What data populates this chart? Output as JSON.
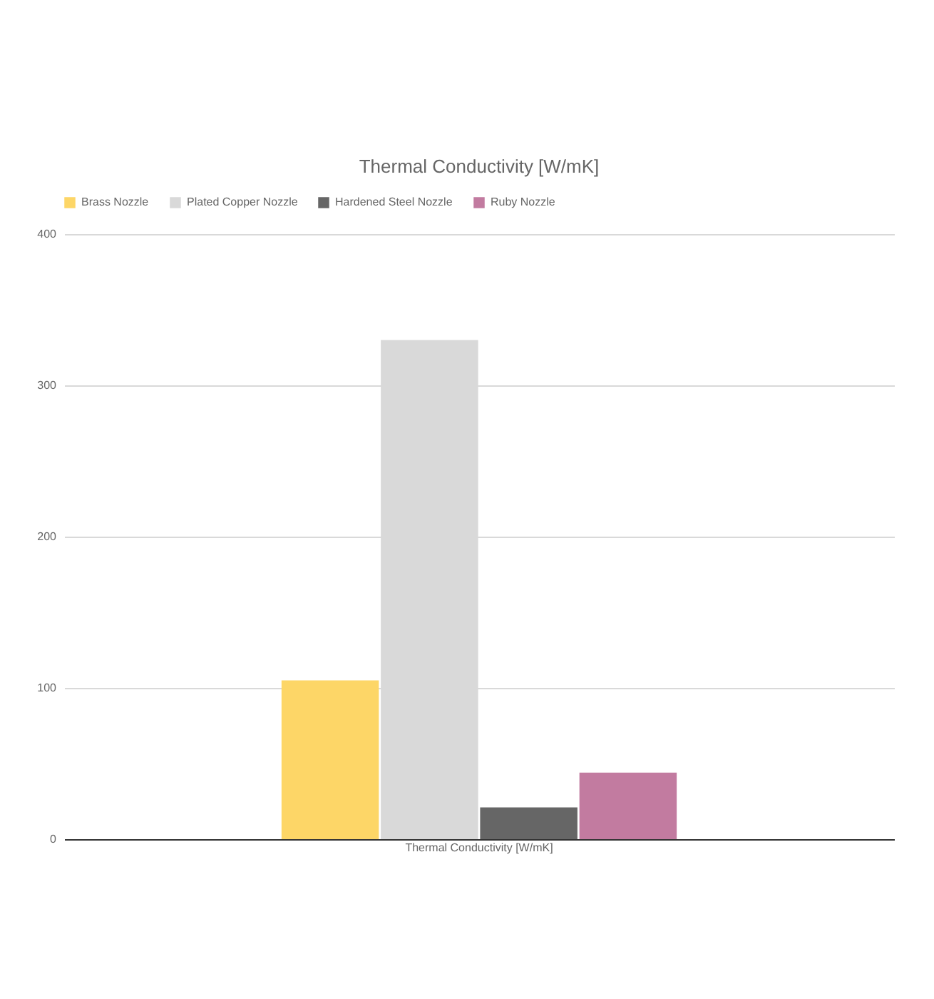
{
  "chart_data": {
    "type": "bar",
    "title": "Thermal Conductivity [W/mK]",
    "categories": [
      "Thermal Conductivity [W/mK]"
    ],
    "series": [
      {
        "name": "Brass Nozzle",
        "color": "#fdd667",
        "values": [
          105
        ]
      },
      {
        "name": "Plated Copper Nozzle",
        "color": "#d9d9d9",
        "values": [
          330
        ]
      },
      {
        "name": "Hardened Steel Nozzle",
        "color": "#666666",
        "values": [
          21
        ]
      },
      {
        "name": "Ruby Nozzle",
        "color": "#c27ba0",
        "values": [
          44
        ]
      }
    ],
    "ylim": [
      0,
      400
    ],
    "yticks": [
      0,
      100,
      200,
      300,
      400
    ],
    "grid": "y",
    "legend": "top"
  }
}
